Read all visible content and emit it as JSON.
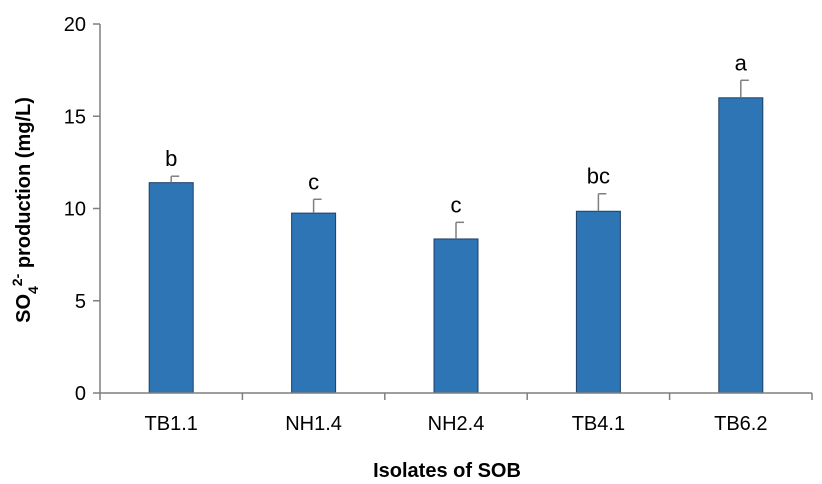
{
  "chart_data": {
    "type": "bar",
    "categories": [
      "TB1.1",
      "NH1.4",
      "NH2.4",
      "TB4.1",
      "TB6.2"
    ],
    "values": [
      11.4,
      9.75,
      8.35,
      9.85,
      16.0
    ],
    "errors": [
      0.35,
      0.75,
      0.9,
      0.95,
      0.95
    ],
    "significance_letters": [
      "b",
      "c",
      "c",
      "bc",
      "a"
    ],
    "xlabel": "Isolates of SOB",
    "ylabel": {
      "prefix": "SO",
      "subscript": "4",
      "superscript": "2-",
      "suffix": " production (mg/L)"
    },
    "ylim": [
      0,
      20
    ],
    "yticks": [
      "0",
      "5",
      "10",
      "15",
      "20"
    ],
    "grid": false,
    "legend": "none",
    "colors": {
      "bar_fill": "#2e75b6",
      "bar_stroke": "#1f3f66",
      "error_bar": "#7f7f7f",
      "axis": "#7f7f7f"
    }
  }
}
